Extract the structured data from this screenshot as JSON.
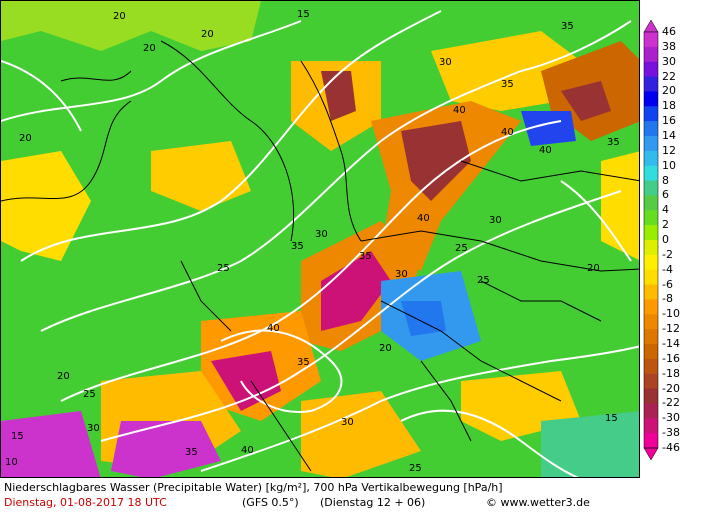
{
  "map": {
    "contour_labels": [
      {
        "text": "20"
      },
      {
        "text": "20"
      },
      {
        "text": "20"
      },
      {
        "text": "15"
      },
      {
        "text": "35"
      },
      {
        "text": "30"
      },
      {
        "text": "35"
      },
      {
        "text": "40"
      },
      {
        "text": "40"
      },
      {
        "text": "40"
      },
      {
        "text": "35"
      },
      {
        "text": "40"
      },
      {
        "text": "35"
      },
      {
        "text": "30"
      },
      {
        "text": "25"
      },
      {
        "text": "20"
      },
      {
        "text": "25"
      },
      {
        "text": "30"
      },
      {
        "text": "35"
      },
      {
        "text": "40"
      },
      {
        "text": "30"
      },
      {
        "text": "35"
      },
      {
        "text": "25"
      },
      {
        "text": "20"
      },
      {
        "text": "15"
      },
      {
        "text": "10"
      },
      {
        "text": "30"
      },
      {
        "text": "25"
      },
      {
        "text": "20"
      },
      {
        "text": "15"
      },
      {
        "text": "35"
      },
      {
        "text": "40"
      },
      {
        "text": "30"
      },
      {
        "text": "20"
      },
      {
        "text": "25"
      }
    ],
    "colors": {
      "land_base": "#33cc33",
      "contour_line": "#ffffff",
      "border_line": "#000000"
    }
  },
  "legend": {
    "ticks": [
      "46",
      "38",
      "30",
      "22",
      "20",
      "18",
      "16",
      "14",
      "12",
      "10",
      "8",
      "6",
      "4",
      "2",
      "0",
      "-2",
      "-4",
      "-6",
      "-8",
      "-10",
      "-12",
      "-14",
      "-16",
      "-18",
      "-20",
      "-22",
      "-30",
      "-38",
      "-46"
    ],
    "colors": [
      "#cc33cc",
      "#aa22cc",
      "#7711dd",
      "#3322dd",
      "#0000ee",
      "#1144ee",
      "#2277ee",
      "#3399ee",
      "#33bbee",
      "#33dddd",
      "#44cc88",
      "#55cc44",
      "#66dd22",
      "#99ee00",
      "#ddee00",
      "#ffee00",
      "#ffdd00",
      "#ffbb00",
      "#ff9900",
      "#ee8800",
      "#dd7700",
      "#cc6600",
      "#bb5511",
      "#aa4422",
      "#993333",
      "#aa2255",
      "#cc1177",
      "#ee0099"
    ]
  },
  "caption": {
    "line1": "Niederschlagbares Wasser (Precipitable Water) [kg/m²], 700 hPa Vertikalbewegung [hPa/h]",
    "date": "Dienstag, 01-08-2017  18 UTC",
    "model": "(GFS 0.5°)",
    "run": "(Dienstag 12 + 06)",
    "copyright": "© www.wetter3.de"
  }
}
